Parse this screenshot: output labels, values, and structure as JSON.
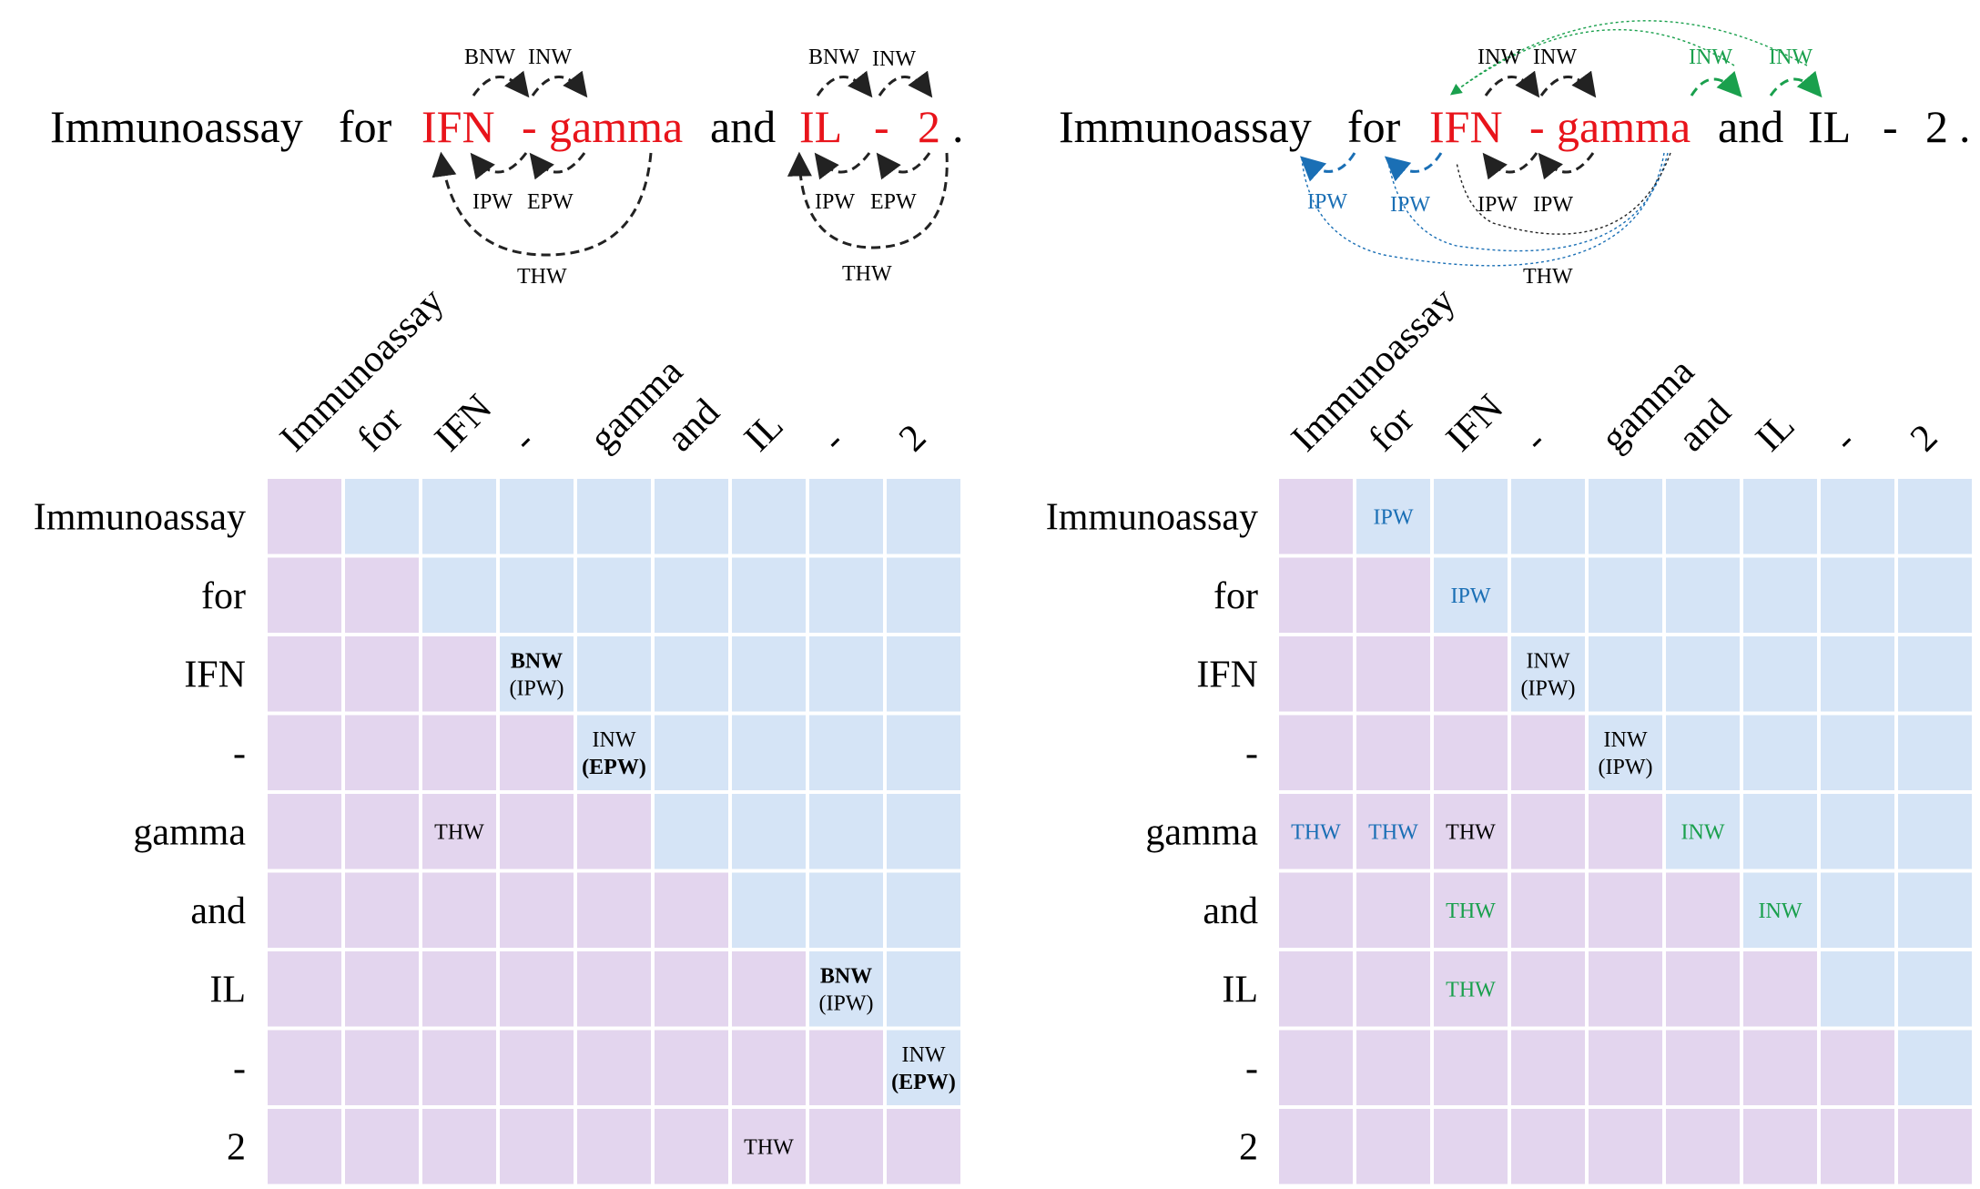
{
  "colors": {
    "entity": "#e8141b",
    "text": "#000000",
    "lower_cell": "#e3d5ee",
    "upper_cell": "#d5e4f6",
    "intra_label": "#1a6fb5",
    "inter_label": "#1aa04d",
    "arrow": "#222222"
  },
  "tokens": [
    "Immunoassay",
    "for",
    "IFN",
    "-",
    "gamma",
    "and",
    "IL",
    "-",
    "2"
  ],
  "sentence_end": ".",
  "panels": [
    {
      "id": "left",
      "entities": [
        2,
        3,
        4,
        6,
        7,
        8
      ],
      "arc_labels": [
        {
          "text": "BNW",
          "kind": "normal"
        },
        {
          "text": "INW",
          "kind": "normal"
        },
        {
          "text": "IPW",
          "kind": "normal"
        },
        {
          "text": "EPW",
          "kind": "normal"
        },
        {
          "text": "THW",
          "kind": "normal"
        },
        {
          "text": "BNW",
          "kind": "normal"
        },
        {
          "text": "INW",
          "kind": "normal"
        },
        {
          "text": "IPW",
          "kind": "normal"
        },
        {
          "text": "EPW",
          "kind": "normal"
        },
        {
          "text": "THW",
          "kind": "normal"
        }
      ],
      "cells": [
        {
          "row": 2,
          "col": 3,
          "lines": [
            {
              "text": "BNW",
              "bold": true
            },
            {
              "text": "(IPW)",
              "bold": false
            }
          ],
          "kind": "normal"
        },
        {
          "row": 3,
          "col": 4,
          "lines": [
            {
              "text": "INW",
              "bold": false
            },
            {
              "text": "(EPW)",
              "bold": true
            }
          ],
          "kind": "normal"
        },
        {
          "row": 4,
          "col": 2,
          "lines": [
            {
              "text": "THW",
              "bold": false
            }
          ],
          "kind": "normal"
        },
        {
          "row": 6,
          "col": 7,
          "lines": [
            {
              "text": "BNW",
              "bold": true
            },
            {
              "text": "(IPW)",
              "bold": false
            }
          ],
          "kind": "normal"
        },
        {
          "row": 7,
          "col": 8,
          "lines": [
            {
              "text": "INW",
              "bold": false
            },
            {
              "text": "(EPW)",
              "bold": true
            }
          ],
          "kind": "normal"
        },
        {
          "row": 8,
          "col": 6,
          "lines": [
            {
              "text": "THW",
              "bold": false
            }
          ],
          "kind": "normal"
        }
      ]
    },
    {
      "id": "right",
      "entities": [
        2,
        3,
        4
      ],
      "arc_labels": [
        {
          "text": "INW",
          "kind": "normal"
        },
        {
          "text": "INW",
          "kind": "normal"
        },
        {
          "text": "INW",
          "kind": "inter"
        },
        {
          "text": "INW",
          "kind": "inter"
        },
        {
          "text": "IPW",
          "kind": "intra"
        },
        {
          "text": "IPW",
          "kind": "intra"
        },
        {
          "text": "IPW",
          "kind": "normal"
        },
        {
          "text": "IPW",
          "kind": "normal"
        },
        {
          "text": "THW",
          "kind": "normal"
        }
      ],
      "cells": [
        {
          "row": 0,
          "col": 1,
          "lines": [
            {
              "text": "IPW",
              "bold": false
            }
          ],
          "kind": "intra"
        },
        {
          "row": 1,
          "col": 2,
          "lines": [
            {
              "text": "IPW",
              "bold": false
            }
          ],
          "kind": "intra"
        },
        {
          "row": 2,
          "col": 3,
          "lines": [
            {
              "text": "INW",
              "bold": false
            },
            {
              "text": "(IPW)",
              "bold": false
            }
          ],
          "kind": "normal"
        },
        {
          "row": 3,
          "col": 4,
          "lines": [
            {
              "text": "INW",
              "bold": false
            },
            {
              "text": "(IPW)",
              "bold": false
            }
          ],
          "kind": "normal"
        },
        {
          "row": 4,
          "col": 0,
          "lines": [
            {
              "text": "THW",
              "bold": false
            }
          ],
          "kind": "intra"
        },
        {
          "row": 4,
          "col": 1,
          "lines": [
            {
              "text": "THW",
              "bold": false
            }
          ],
          "kind": "intra"
        },
        {
          "row": 4,
          "col": 2,
          "lines": [
            {
              "text": "THW",
              "bold": false
            }
          ],
          "kind": "normal"
        },
        {
          "row": 4,
          "col": 5,
          "lines": [
            {
              "text": "INW",
              "bold": false
            }
          ],
          "kind": "inter"
        },
        {
          "row": 5,
          "col": 2,
          "lines": [
            {
              "text": "THW",
              "bold": false
            }
          ],
          "kind": "inter"
        },
        {
          "row": 5,
          "col": 6,
          "lines": [
            {
              "text": "INW",
              "bold": false
            }
          ],
          "kind": "inter"
        },
        {
          "row": 6,
          "col": 2,
          "lines": [
            {
              "text": "THW",
              "bold": false
            }
          ],
          "kind": "inter"
        }
      ]
    }
  ]
}
